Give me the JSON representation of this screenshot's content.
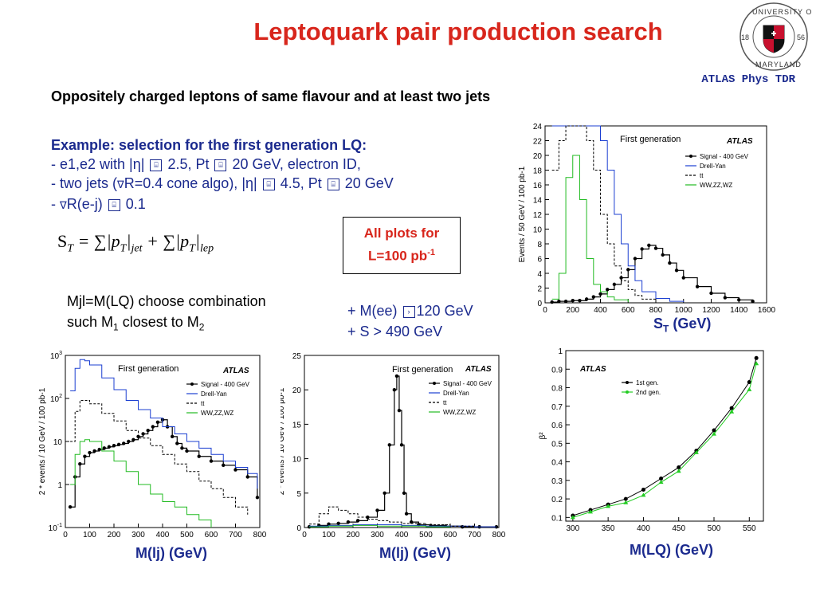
{
  "slide": {
    "title": "Leptoquark pair production search",
    "source": "ATLAS Phys TDR",
    "subtitle": "Oppositely charged leptons of same flavour and at least two jets",
    "selection": {
      "header": "Example: selection for the first generation LQ:",
      "line1": "- e1,e2  with |η| ",
      "line1b": "2.5,  Pt ",
      "line1c": "20 GeV, electron ID,",
      "line2": "- two jets (",
      "line2b": "R=0.4 cone algo), |η| ",
      "line2c": "4.5, Pt ",
      "line2d": "20 GeV",
      "line3": "- ",
      "line3b": "R(e-j) ",
      "line3c": "0.1"
    },
    "formula": "S_T = Σ|p_T|_jet + Σ|p_T|_lep",
    "plots_box": {
      "line1": "All plots for",
      "line2": "L=100 pb",
      "sup": "-1"
    },
    "mjl": {
      "line1": "Mjl=M(LQ)  choose combination",
      "line2a": "such M",
      "sub1": "1",
      "line2b": " closest to M",
      "sub2": "2"
    },
    "cuts": {
      "line1a": "+ M(ee) ",
      "line1b": "120 GeV",
      "line2": "+ S > 490 GeV"
    },
    "captions": {
      "st_main": "S",
      "st_sub": "T",
      "st_unit": " (GeV)",
      "mlj1": "M(lj) (GeV)",
      "mlj2": "M(lj) (GeV)",
      "mlq": "M(LQ) (GeV)"
    },
    "logo": {
      "top": "UNIVERSITY OF",
      "bottom": "MARYLAND",
      "left": "18",
      "right": "56"
    }
  },
  "chart_data": [
    {
      "type": "line",
      "panel": "top-right",
      "title": "First generation",
      "brand": "ATLAS",
      "ylabel": "Events / 50 GeV / 100 pb-1",
      "xlim": [
        0,
        1600
      ],
      "ylim": [
        0,
        24
      ],
      "xticks": [
        0,
        200,
        400,
        600,
        800,
        1000,
        1200,
        1400,
        1600
      ],
      "yticks": [
        0,
        2,
        4,
        6,
        8,
        10,
        12,
        14,
        16,
        18,
        20,
        22,
        24
      ],
      "legend_position": "top-right",
      "series": [
        {
          "name": "Signal - 400 GeV",
          "color": "#000000",
          "x": [
            50,
            100,
            150,
            200,
            250,
            300,
            350,
            400,
            450,
            500,
            550,
            600,
            650,
            700,
            750,
            800,
            850,
            900,
            950,
            1000,
            1100,
            1200,
            1300,
            1400,
            1500
          ],
          "y": [
            0.1,
            0.2,
            0.2,
            0.3,
            0.3,
            0.5,
            0.8,
            1.2,
            1.8,
            2.5,
            3.4,
            4.5,
            6.0,
            7.3,
            7.8,
            7.4,
            6.5,
            5.4,
            4.4,
            3.4,
            2.2,
            1.3,
            0.7,
            0.4,
            0.2
          ]
        },
        {
          "name": "Drell-Yan",
          "color": "#1b3fd1",
          "x": [
            50,
            100,
            150,
            200,
            250,
            300,
            350,
            400,
            450,
            500,
            550,
            600,
            650,
            700,
            800,
            900,
            1000
          ],
          "y": [
            24,
            24,
            24,
            24,
            24,
            24,
            24,
            22,
            18,
            12,
            8,
            5,
            3,
            1.5,
            0.6,
            0.2,
            0.1
          ]
        },
        {
          "name": "tt",
          "color": "#000000",
          "x": [
            50,
            100,
            150,
            200,
            250,
            300,
            350,
            400,
            450,
            500,
            550,
            600,
            650,
            700,
            800
          ],
          "y": [
            18,
            22,
            24,
            24,
            24,
            22,
            18,
            12,
            8,
            5,
            3,
            1.8,
            1,
            0.5,
            0.1
          ]
        },
        {
          "name": "WW,ZZ,WZ",
          "color": "#22bb22",
          "x": [
            50,
            100,
            150,
            200,
            250,
            300,
            350,
            400,
            450,
            500,
            600
          ],
          "y": [
            0.5,
            4,
            17,
            20,
            14,
            6,
            2.5,
            1.5,
            0.8,
            0.4,
            0.1
          ]
        }
      ],
      "xlabel": "S_T (GeV)"
    },
    {
      "type": "line",
      "panel": "bottom-left",
      "title": "First generation",
      "brand": "ATLAS",
      "ylabel": "2 * events / 10 GeV / 100 pb-1",
      "log_y": true,
      "xlim": [
        0,
        800
      ],
      "ylim": [
        0.1,
        1000
      ],
      "xticks": [
        0,
        100,
        200,
        300,
        400,
        500,
        600,
        700,
        800
      ],
      "yticks_labels": [
        "10^-1",
        "1",
        "10",
        "10^2",
        "10^3"
      ],
      "series": [
        {
          "name": "Signal - 400 GeV",
          "color": "#000000",
          "x": [
            20,
            40,
            60,
            80,
            100,
            120,
            140,
            160,
            180,
            200,
            220,
            240,
            260,
            280,
            300,
            320,
            340,
            360,
            380,
            400,
            420,
            440,
            460,
            480,
            500,
            550,
            600,
            650,
            700,
            750,
            790
          ],
          "y": [
            0.3,
            1.5,
            3,
            4.5,
            5.5,
            6,
            6.5,
            7,
            7.5,
            8,
            8.5,
            9,
            10,
            11,
            13,
            15,
            18,
            22,
            28,
            32,
            22,
            13,
            9,
            7,
            6,
            4.5,
            3.5,
            2.8,
            2.2,
            1.5,
            0.5
          ]
        },
        {
          "name": "Drell-Yan",
          "color": "#1b3fd1",
          "x": [
            20,
            40,
            60,
            80,
            100,
            150,
            200,
            250,
            300,
            350,
            400,
            450,
            500,
            550,
            600,
            650,
            700,
            750,
            790
          ],
          "y": [
            150,
            500,
            800,
            750,
            600,
            300,
            160,
            90,
            55,
            35,
            22,
            15,
            10,
            7,
            5,
            3.5,
            2.5,
            1.8,
            0.8
          ]
        },
        {
          "name": "tt",
          "color": "#000000",
          "x": [
            20,
            40,
            60,
            80,
            100,
            150,
            200,
            250,
            300,
            350,
            400,
            450,
            500,
            550,
            600,
            650,
            700,
            750
          ],
          "y": [
            10,
            50,
            90,
            90,
            75,
            45,
            30,
            18,
            12,
            8,
            5,
            3,
            2,
            1.2,
            0.8,
            0.5,
            0.3,
            0.2
          ]
        },
        {
          "name": "WW,ZZ,WZ",
          "color": "#22bb22",
          "x": [
            20,
            40,
            60,
            80,
            100,
            150,
            200,
            250,
            300,
            350,
            400,
            450,
            500,
            550,
            600
          ],
          "y": [
            1,
            5,
            10,
            11,
            10,
            6,
            3.5,
            2,
            1,
            0.6,
            0.4,
            0.3,
            0.2,
            0.15,
            0.1
          ]
        }
      ],
      "xlabel": "M(lj) (GeV)"
    },
    {
      "type": "line",
      "panel": "bottom-middle",
      "title": "First generation",
      "brand": "ATLAS",
      "ylabel": "2 * events / 10 GeV / 100 pb-1",
      "xlim": [
        0,
        800
      ],
      "ylim": [
        0,
        25
      ],
      "xticks": [
        0,
        100,
        200,
        300,
        400,
        500,
        600,
        700,
        800
      ],
      "yticks": [
        0,
        5,
        10,
        15,
        20,
        25
      ],
      "series": [
        {
          "name": "Signal - 400 GeV",
          "color": "#000000",
          "x": [
            20,
            60,
            100,
            140,
            180,
            220,
            260,
            300,
            330,
            350,
            370,
            380,
            390,
            400,
            410,
            420,
            440,
            470,
            520,
            580,
            650,
            720,
            790
          ],
          "y": [
            0.1,
            0.3,
            0.5,
            0.6,
            0.8,
            1,
            1.5,
            2.5,
            5,
            12,
            20,
            22,
            17,
            12,
            5,
            2,
            0.8,
            0.4,
            0.3,
            0.2,
            0.1,
            0.1,
            0.1
          ]
        },
        {
          "name": "Drell-Yan",
          "color": "#1b3fd1",
          "x": [
            20,
            100,
            200,
            300,
            400,
            500,
            600,
            700,
            790
          ],
          "y": [
            0.2,
            0.3,
            0.4,
            0.4,
            0.3,
            0.2,
            0.2,
            0.1,
            0.1
          ]
        },
        {
          "name": "tt",
          "color": "#000000",
          "x": [
            20,
            60,
            100,
            140,
            180,
            220,
            260,
            300,
            350,
            400,
            500,
            600,
            700
          ],
          "y": [
            0.5,
            2,
            3,
            2.5,
            2,
            1.5,
            1.2,
            1,
            0.8,
            0.6,
            0.4,
            0.2,
            0.1
          ]
        },
        {
          "name": "WW,ZZ,WZ",
          "color": "#22bb22",
          "x": [
            20,
            100,
            200,
            300,
            400,
            500,
            600
          ],
          "y": [
            0.1,
            0.2,
            0.3,
            0.2,
            0.2,
            0.1,
            0.1
          ]
        }
      ],
      "xlabel": "M(lj) (GeV)"
    },
    {
      "type": "line",
      "panel": "bottom-right",
      "brand": "ATLAS",
      "ylabel": "β²",
      "xlim": [
        290,
        570
      ],
      "ylim": [
        0.08,
        1.0
      ],
      "xticks": [
        300,
        350,
        400,
        450,
        500,
        550
      ],
      "yticks": [
        0.1,
        0.2,
        0.3,
        0.4,
        0.5,
        0.6,
        0.7,
        0.8,
        0.9,
        1
      ],
      "series": [
        {
          "name": "1st gen.",
          "color": "#000000",
          "x": [
            300,
            325,
            350,
            375,
            400,
            425,
            450,
            475,
            500,
            525,
            550,
            560
          ],
          "y": [
            0.11,
            0.14,
            0.17,
            0.2,
            0.25,
            0.31,
            0.37,
            0.46,
            0.57,
            0.69,
            0.83,
            0.96
          ]
        },
        {
          "name": "2nd gen.",
          "color": "#22cc22",
          "x": [
            300,
            325,
            350,
            375,
            400,
            425,
            450,
            475,
            500,
            525,
            550,
            560
          ],
          "y": [
            0.1,
            0.13,
            0.16,
            0.18,
            0.22,
            0.29,
            0.35,
            0.45,
            0.55,
            0.67,
            0.79,
            0.93
          ]
        }
      ],
      "xlabel": "M(LQ) (GeV)"
    }
  ]
}
